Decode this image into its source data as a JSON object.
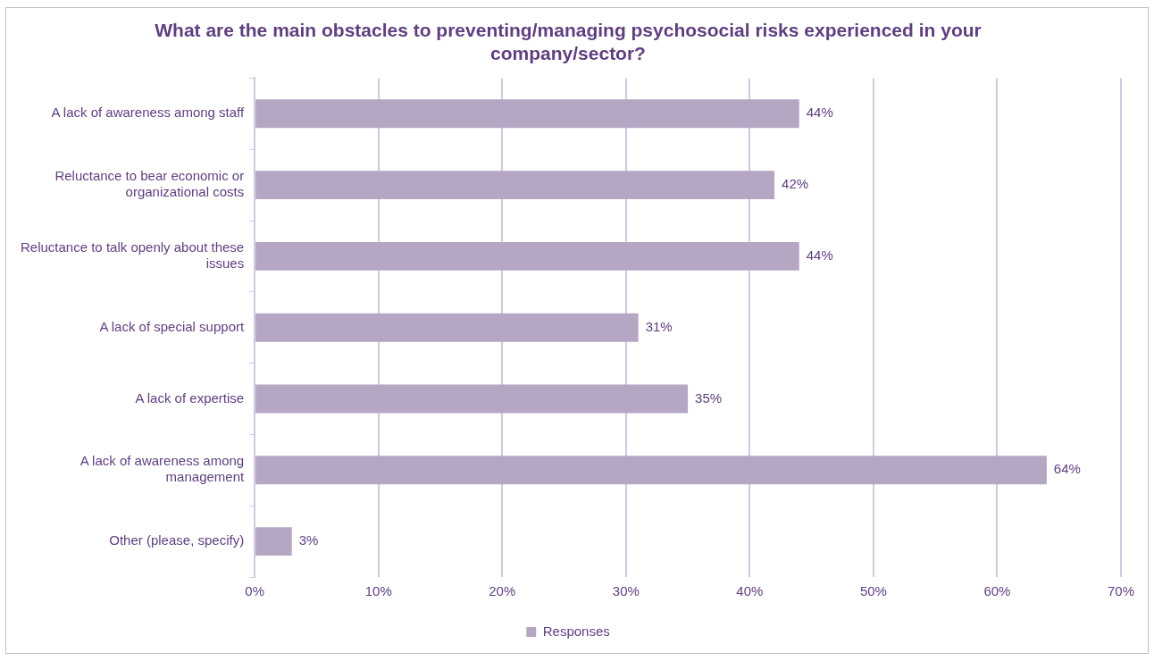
{
  "chart_data": {
    "type": "bar",
    "orientation": "horizontal",
    "title": "What are the main obstacles to preventing/managing psychosocial risks experienced in your company/sector?",
    "categories": [
      "A lack of awareness among staff",
      "Reluctance to bear economic or organizational costs",
      "Reluctance to talk openly about these issues",
      "A lack of special support",
      "A lack of expertise",
      "A lack of awareness among management",
      "Other (please, specify)"
    ],
    "series": [
      {
        "name": "Responses",
        "color": "#b5a6c4",
        "values": [
          44,
          42,
          44,
          31,
          35,
          64,
          3
        ],
        "value_labels": [
          "44%",
          "42%",
          "44%",
          "31%",
          "35%",
          "64%",
          "3%"
        ]
      }
    ],
    "xlim": [
      0,
      70
    ],
    "xticks": [
      {
        "value": 0,
        "label": "0%"
      },
      {
        "value": 10,
        "label": "10%"
      },
      {
        "value": 20,
        "label": "20%"
      },
      {
        "value": 30,
        "label": "30%"
      },
      {
        "value": 40,
        "label": "40%"
      },
      {
        "value": 50,
        "label": "50%"
      },
      {
        "value": 60,
        "label": "60%"
      },
      {
        "value": 70,
        "label": "70%"
      }
    ],
    "grid": "x",
    "legend": "bottom"
  }
}
